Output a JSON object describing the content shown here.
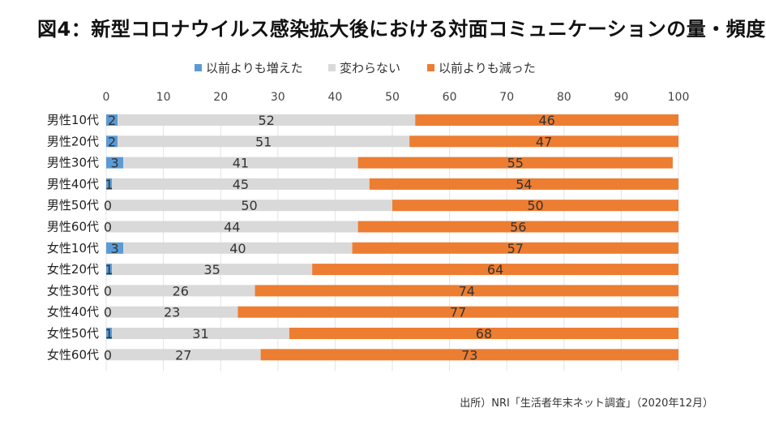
{
  "title": "図4：新型コロナウイルス感染拡大後における対面コミュニケーションの量・頻度",
  "source": "出所）NRI「生活者年末ネット調査」（2020年12月）",
  "chart_data": {
    "type": "bar",
    "orientation": "horizontal",
    "stacked": true,
    "categories": [
      "男性10代",
      "男性20代",
      "男性30代",
      "男性40代",
      "男性50代",
      "男性60代",
      "女性10代",
      "女性20代",
      "女性30代",
      "女性40代",
      "女性50代",
      "女性60代"
    ],
    "series": [
      {
        "name": "以前よりも増えた",
        "color": "#5b9bd5",
        "values": [
          2,
          2,
          3,
          1,
          0,
          0,
          3,
          1,
          0,
          0,
          1,
          0
        ]
      },
      {
        "name": "変わらない",
        "color": "#d9d9d9",
        "values": [
          52,
          51,
          41,
          45,
          50,
          44,
          40,
          35,
          26,
          23,
          31,
          27
        ]
      },
      {
        "name": "以前よりも減った",
        "color": "#ed7d31",
        "values": [
          46,
          47,
          55,
          54,
          50,
          56,
          57,
          64,
          74,
          77,
          68,
          73
        ]
      }
    ],
    "xlim": [
      0,
      100
    ],
    "xticks": [
      0,
      10,
      20,
      30,
      40,
      50,
      60,
      70,
      80,
      90,
      100
    ],
    "grid": true,
    "legend": "top-center",
    "data_labels": true
  }
}
